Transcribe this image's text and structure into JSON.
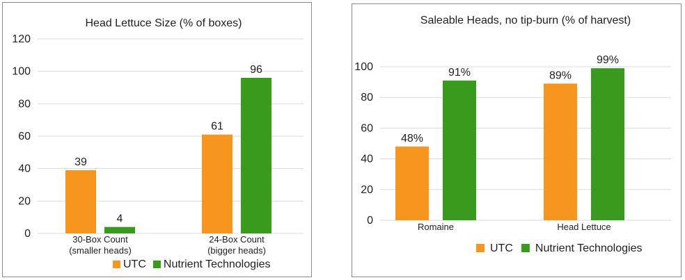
{
  "colors": {
    "utc": "#F7961E",
    "nutrient": "#3A9A1E",
    "grid": "#d9d9d9",
    "frame": "#8c8c8c"
  },
  "chart_data": [
    {
      "type": "bar",
      "title": "Head Lettuce Size (% of boxes)",
      "categories": [
        [
          "30-Box Count",
          "(smaller heads)"
        ],
        [
          "24-Box Count",
          "(bigger heads)"
        ]
      ],
      "series": [
        {
          "name": "UTC",
          "values": [
            39,
            61
          ],
          "labels": [
            "39",
            "61"
          ]
        },
        {
          "name": "Nutrient Technologies",
          "values": [
            4,
            96
          ],
          "labels": [
            "4",
            "96"
          ]
        }
      ],
      "yticks": [
        "0",
        "20",
        "40",
        "60",
        "80",
        "100",
        "120"
      ],
      "ylim": [
        0,
        120
      ],
      "grid": true,
      "legend": "bottom",
      "legend_labels": [
        "UTC",
        "Nutrient Technologies"
      ]
    },
    {
      "type": "bar",
      "title": "Saleable Heads, no tip-burn (% of harvest)",
      "categories": [
        [
          "Romaine"
        ],
        [
          "Head Lettuce"
        ]
      ],
      "series": [
        {
          "name": "UTC",
          "values": [
            48,
            89
          ],
          "labels": [
            "48%",
            "89%"
          ]
        },
        {
          "name": "Nutrient Technologies",
          "values": [
            91,
            99
          ],
          "labels": [
            "91%",
            "99%"
          ]
        }
      ],
      "yticks": [
        "0",
        "20",
        "40",
        "60",
        "80",
        "100"
      ],
      "ylim": [
        0,
        100
      ],
      "grid": true,
      "legend": "bottom",
      "legend_labels": [
        "UTC",
        "Nutrient Technologies"
      ]
    }
  ]
}
